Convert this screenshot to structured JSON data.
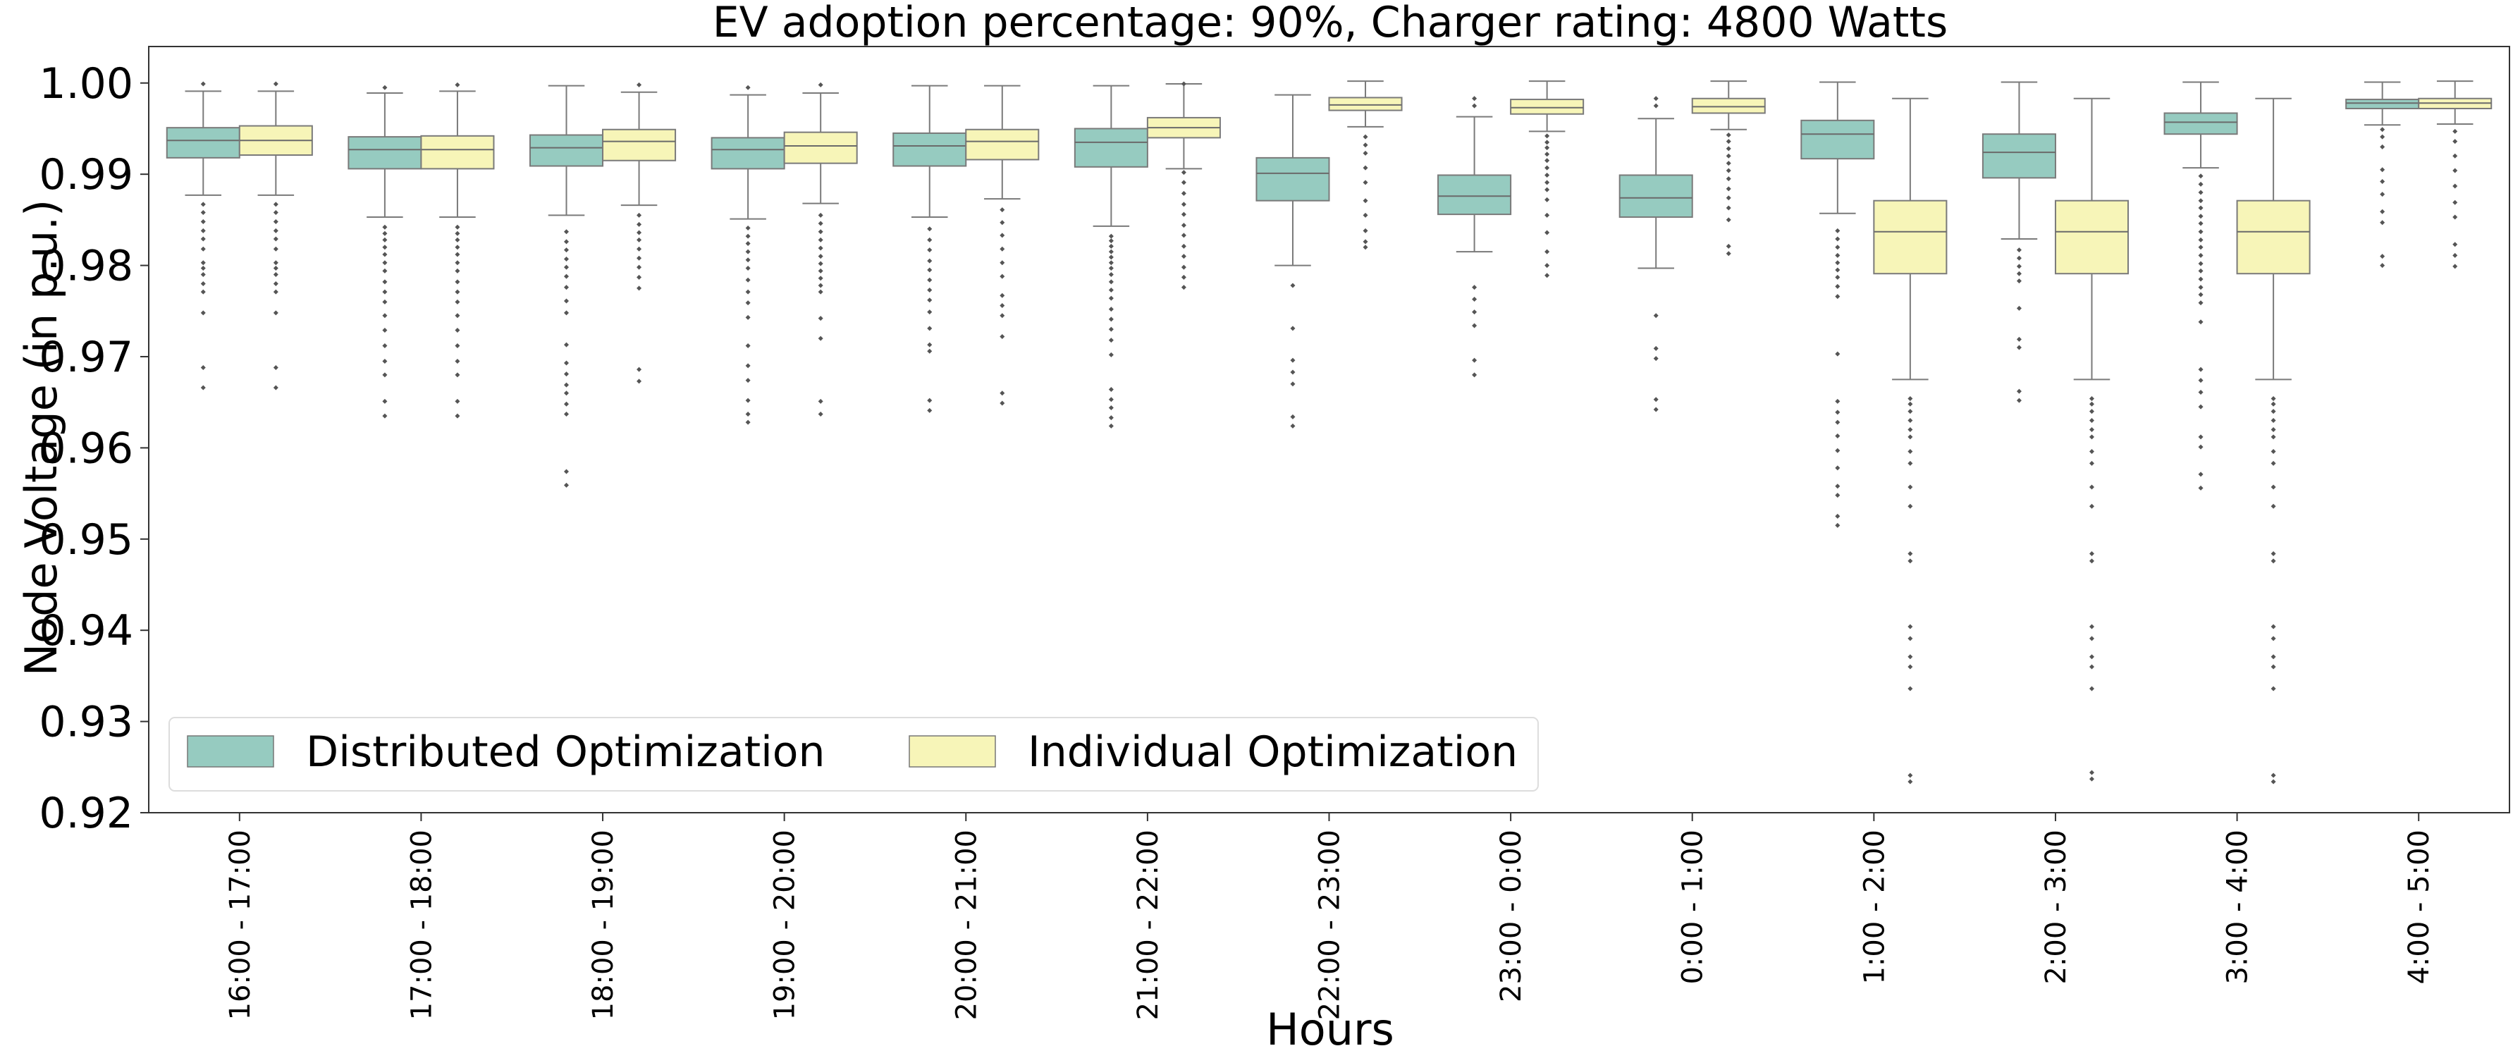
{
  "chart_data": {
    "type": "box",
    "title": "EV adoption percentage: 90%, Charger rating: 4800 Watts",
    "xlabel": "Hours",
    "ylabel": "Node Voltage (in p.u.)",
    "ylim": [
      0.92,
      1.004
    ],
    "yticks": [
      "0.92",
      "0.93",
      "0.94",
      "0.95",
      "0.96",
      "0.97",
      "0.98",
      "0.99",
      "1.00"
    ],
    "ytick_values": [
      0.92,
      0.93,
      0.94,
      0.95,
      0.96,
      0.97,
      0.98,
      0.99,
      1.0
    ],
    "grid": false,
    "legend_position": "bottom-left",
    "categories": [
      "16:00 - 17:00",
      "17:00 - 18:00",
      "18:00 - 19:00",
      "19:00 - 20:00",
      "20:00 - 21:00",
      "21:00 - 22:00",
      "22:00 - 23:00",
      "23:00 - 0:00",
      "0:00 - 1:00",
      "1:00 - 2:00",
      "2:00 - 3:00",
      "3:00 - 4:00",
      "4:00 - 5:00"
    ],
    "series": [
      {
        "name": "Distributed Optimization",
        "color": "#96cbc0",
        "boxes": [
          {
            "whislo": 0.9877,
            "q1": 0.9918,
            "med": 0.9937,
            "q3": 0.9951,
            "whishi": 0.9991,
            "fliers": [
              0.9999,
              0.9867,
              0.9858,
              0.9848,
              0.9838,
              0.9829,
              0.9818,
              0.9803,
              0.9797,
              0.979,
              0.978,
              0.9771,
              0.9748,
              0.9688,
              0.9666
            ]
          },
          {
            "whislo": 0.9853,
            "q1": 0.9906,
            "med": 0.9927,
            "q3": 0.9941,
            "whishi": 0.9989,
            "fliers": [
              0.9995,
              0.9842,
              0.9835,
              0.9828,
              0.982,
              0.9812,
              0.9803,
              0.9794,
              0.9782,
              0.9771,
              0.976,
              0.9745,
              0.9729,
              0.9712,
              0.9695,
              0.968,
              0.9651,
              0.9635
            ]
          },
          {
            "whislo": 0.9855,
            "q1": 0.9909,
            "med": 0.9929,
            "q3": 0.9943,
            "whishi": 0.9997,
            "fliers": [
              0.9837,
              0.9826,
              0.9817,
              0.9807,
              0.9798,
              0.9788,
              0.9776,
              0.9761,
              0.9748,
              0.9713,
              0.9693,
              0.9681,
              0.9669,
              0.966,
              0.9648,
              0.9637,
              0.9574,
              0.9559
            ]
          },
          {
            "whislo": 0.9851,
            "q1": 0.9906,
            "med": 0.9927,
            "q3": 0.994,
            "whishi": 0.9987,
            "fliers": [
              0.9995,
              0.9841,
              0.9832,
              0.9824,
              0.9815,
              0.9806,
              0.9797,
              0.9784,
              0.9771,
              0.9759,
              0.9743,
              0.9712,
              0.969,
              0.9674,
              0.9652,
              0.9637,
              0.9628
            ]
          },
          {
            "whislo": 0.9853,
            "q1": 0.9909,
            "med": 0.9931,
            "q3": 0.9945,
            "whishi": 0.9997,
            "fliers": [
              0.984,
              0.9828,
              0.9817,
              0.9805,
              0.9795,
              0.9784,
              0.9773,
              0.9762,
              0.9749,
              0.9731,
              0.9713,
              0.9706,
              0.9652,
              0.9641
            ]
          },
          {
            "whislo": 0.9843,
            "q1": 0.9908,
            "med": 0.9935,
            "q3": 0.995,
            "whishi": 0.9997,
            "fliers": [
              0.9832,
              0.9827,
              0.9821,
              0.9815,
              0.9809,
              0.9803,
              0.9797,
              0.979,
              0.9782,
              0.9773,
              0.9764,
              0.9752,
              0.9741,
              0.973,
              0.9718,
              0.9702,
              0.9664,
              0.9653,
              0.9644,
              0.9633,
              0.9624
            ]
          },
          {
            "whislo": 0.98,
            "q1": 0.9871,
            "med": 0.9901,
            "q3": 0.9918,
            "whishi": 0.9987,
            "fliers": [
              0.9778,
              0.9731,
              0.9696,
              0.9683,
              0.967,
              0.9634,
              0.9624
            ]
          },
          {
            "whislo": 0.9815,
            "q1": 0.9856,
            "med": 0.9876,
            "q3": 0.9899,
            "whishi": 0.9963,
            "fliers": [
              0.9983,
              0.9975,
              0.9776,
              0.9763,
              0.9749,
              0.9734,
              0.9696,
              0.968
            ]
          },
          {
            "whislo": 0.9797,
            "q1": 0.9853,
            "med": 0.9874,
            "q3": 0.9899,
            "whishi": 0.9961,
            "fliers": [
              0.9983,
              0.9975,
              0.9745,
              0.9709,
              0.9698,
              0.9653,
              0.9642
            ]
          },
          {
            "whislo": 0.9857,
            "q1": 0.9917,
            "med": 0.9944,
            "q3": 0.9959,
            "whishi": 1.0001,
            "fliers": [
              0.9838,
              0.9829,
              0.982,
              0.9811,
              0.9803,
              0.9795,
              0.9787,
              0.9777,
              0.9766,
              0.9703,
              0.9651,
              0.9639,
              0.9628,
              0.9613,
              0.9597,
              0.9578,
              0.9558,
              0.9548,
              0.9525,
              0.9515
            ]
          },
          {
            "whislo": 0.9829,
            "q1": 0.9896,
            "med": 0.9924,
            "q3": 0.9944,
            "whishi": 1.0001,
            "fliers": [
              0.9817,
              0.9808,
              0.9799,
              0.9791,
              0.9783,
              0.9753,
              0.9719,
              0.971,
              0.9662,
              0.9652
            ]
          },
          {
            "whislo": 0.9907,
            "q1": 0.9944,
            "med": 0.9957,
            "q3": 0.9967,
            "whishi": 1.0001,
            "fliers": [
              0.9898,
              0.9889,
              0.988,
              0.9871,
              0.9863,
              0.9854,
              0.9846,
              0.9837,
              0.9828,
              0.982,
              0.9811,
              0.9802,
              0.9794,
              0.9785,
              0.9776,
              0.9768,
              0.9759,
              0.9738,
              0.9686,
              0.9674,
              0.9661,
              0.9645,
              0.9612,
              0.9601,
              0.9571,
              0.9556
            ]
          },
          {
            "whislo": 0.9954,
            "q1": 0.9972,
            "med": 0.9978,
            "q3": 0.9982,
            "whishi": 1.0001,
            "fliers": [
              0.9949,
              0.9941,
              0.993,
              0.9905,
              0.9892,
              0.9878,
              0.9859,
              0.9847,
              0.981,
              0.98
            ]
          }
        ]
      },
      {
        "name": "Individual Optimization",
        "color": "#f7f5b8",
        "boxes": [
          {
            "whislo": 0.9877,
            "q1": 0.9921,
            "med": 0.9937,
            "q3": 0.9953,
            "whishi": 0.9991,
            "fliers": [
              0.9999,
              0.9867,
              0.9858,
              0.9848,
              0.9838,
              0.9829,
              0.9818,
              0.9803,
              0.9797,
              0.979,
              0.978,
              0.9771,
              0.9748,
              0.9688,
              0.9666
            ]
          },
          {
            "whislo": 0.9853,
            "q1": 0.9906,
            "med": 0.9927,
            "q3": 0.9942,
            "whishi": 0.9991,
            "fliers": [
              0.9998,
              0.9842,
              0.9835,
              0.9828,
              0.982,
              0.9812,
              0.9803,
              0.9794,
              0.9782,
              0.9771,
              0.976,
              0.9745,
              0.9729,
              0.9712,
              0.9695,
              0.968,
              0.9651,
              0.9635
            ]
          },
          {
            "whislo": 0.9866,
            "q1": 0.9915,
            "med": 0.9936,
            "q3": 0.9949,
            "whishi": 0.999,
            "fliers": [
              0.9998,
              0.9855,
              0.9845,
              0.9836,
              0.9828,
              0.9818,
              0.9808,
              0.9798,
              0.9787,
              0.9775,
              0.9686,
              0.9673
            ]
          },
          {
            "whislo": 0.9868,
            "q1": 0.9912,
            "med": 0.9931,
            "q3": 0.9946,
            "whishi": 0.9989,
            "fliers": [
              0.9998,
              0.9855,
              0.9846,
              0.9837,
              0.9828,
              0.9819,
              0.981,
              0.9802,
              0.9794,
              0.9786,
              0.9778,
              0.9771,
              0.9742,
              0.972,
              0.9651,
              0.9637
            ]
          },
          {
            "whislo": 0.9873,
            "q1": 0.9916,
            "med": 0.9936,
            "q3": 0.9949,
            "whishi": 0.9997,
            "fliers": [
              0.9861,
              0.9847,
              0.9833,
              0.9818,
              0.9803,
              0.9788,
              0.9767,
              0.9756,
              0.9745,
              0.9722,
              0.966,
              0.9649
            ]
          },
          {
            "whislo": 0.9906,
            "q1": 0.994,
            "med": 0.9951,
            "q3": 0.9962,
            "whishi": 0.9999,
            "fliers": [
              0.9999,
              0.9902,
              0.9891,
              0.9879,
              0.9867,
              0.9856,
              0.9844,
              0.9833,
              0.9821,
              0.981,
              0.9798,
              0.9787,
              0.9776
            ]
          },
          {
            "whislo": 0.9952,
            "q1": 0.997,
            "med": 0.9976,
            "q3": 0.9984,
            "whishi": 1.0002,
            "fliers": [
              0.9941,
              0.9932,
              0.9923,
              0.9907,
              0.9891,
              0.9871,
              0.9855,
              0.9838,
              0.9826,
              0.982
            ]
          },
          {
            "whislo": 0.9947,
            "q1": 0.9966,
            "med": 0.9973,
            "q3": 0.9982,
            "whishi": 1.0002,
            "fliers": [
              0.9942,
              0.9935,
              0.9929,
              0.9922,
              0.9915,
              0.9907,
              0.9899,
              0.9891,
              0.9883,
              0.9872,
              0.9855,
              0.9836,
              0.9815,
              0.98,
              0.9789
            ]
          },
          {
            "whislo": 0.9949,
            "q1": 0.9967,
            "med": 0.9974,
            "q3": 0.9983,
            "whishi": 1.0002,
            "fliers": [
              0.9943,
              0.9936,
              0.9928,
              0.992,
              0.9912,
              0.9904,
              0.9895,
              0.9884,
              0.9874,
              0.9863,
              0.985,
              0.9821,
              0.9813
            ]
          },
          {
            "whislo": 0.9675,
            "q1": 0.9791,
            "med": 0.9837,
            "q3": 0.9871,
            "whishi": 0.9983,
            "fliers": [
              0.9654,
              0.9648,
              0.964,
              0.963,
              0.962,
              0.9612,
              0.9596,
              0.9583,
              0.9557,
              0.9536,
              0.9484,
              0.9476,
              0.9404,
              0.9391,
              0.9371,
              0.936,
              0.9336,
              0.9241,
              0.9234
            ]
          },
          {
            "whislo": 0.9675,
            "q1": 0.9791,
            "med": 0.9837,
            "q3": 0.9871,
            "whishi": 0.9983,
            "fliers": [
              0.9654,
              0.9648,
              0.964,
              0.963,
              0.962,
              0.9612,
              0.9596,
              0.9583,
              0.9557,
              0.9536,
              0.9484,
              0.9476,
              0.9404,
              0.9391,
              0.9371,
              0.936,
              0.9336,
              0.9244,
              0.9237
            ]
          },
          {
            "whislo": 0.9675,
            "q1": 0.9791,
            "med": 0.9837,
            "q3": 0.9871,
            "whishi": 0.9983,
            "fliers": [
              0.9654,
              0.9648,
              0.964,
              0.963,
              0.962,
              0.9612,
              0.9596,
              0.9583,
              0.9557,
              0.9536,
              0.9484,
              0.9476,
              0.9404,
              0.9391,
              0.9371,
              0.936,
              0.9336,
              0.9241,
              0.9234
            ]
          },
          {
            "whislo": 0.9955,
            "q1": 0.9972,
            "med": 0.9978,
            "q3": 0.9983,
            "whishi": 1.0002,
            "fliers": [
              0.9947,
              0.9936,
              0.992,
              0.9904,
              0.9887,
              0.9869,
              0.9853,
              0.9823,
              0.9811,
              0.9799
            ]
          }
        ]
      }
    ]
  }
}
